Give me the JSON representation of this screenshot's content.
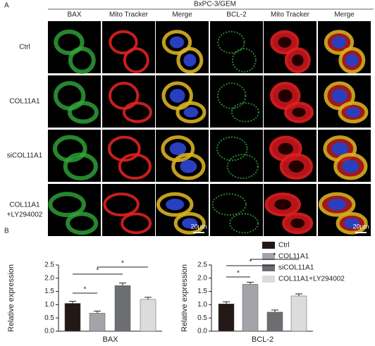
{
  "panel_a": {
    "label": "A",
    "title": "BxPC-3/GEM",
    "columns": [
      "BAX",
      "Mito Tracker",
      "Merge",
      "BCL-2",
      "Mito Tracker",
      "Merge"
    ],
    "rows": [
      [
        "Ctrl"
      ],
      [
        "COL11A1"
      ],
      [
        "siCOL11A1"
      ],
      [
        "COL11A1",
        "+LY294002"
      ]
    ],
    "scale_bars": [
      "20μm",
      "20μm"
    ]
  },
  "panel_b": {
    "label": "B",
    "legend": {
      "names": [
        "Ctrl",
        "COL11A1",
        "siCOL11A1",
        "COL11A1+LY294002"
      ],
      "colors": [
        "#231815",
        "#a3a3aa",
        "#6d6e71",
        "#dcdcdc"
      ]
    }
  },
  "chart_data": [
    {
      "type": "bar",
      "xlabel": "BAX",
      "ylabel": "Relative expression",
      "values": [
        1.05,
        0.68,
        1.72,
        1.2
      ],
      "errors": [
        0.08,
        0.08,
        0.1,
        0.08
      ],
      "ylim": [
        0,
        2.5
      ],
      "yticks": [
        {
          "value": 0,
          "label": "0.0"
        },
        {
          "value": 0.5,
          "label": "0.5"
        },
        {
          "value": 1,
          "label": "1.0"
        },
        {
          "value": 1.5,
          "label": "1.5"
        },
        {
          "value": 2,
          "label": "2.0"
        },
        {
          "value": 2.5,
          "label": "2.5"
        }
      ],
      "annotations": [
        "*",
        "*",
        "*"
      ]
    },
    {
      "type": "bar",
      "xlabel": "BCL-2",
      "ylabel": "Relative expression",
      "values": [
        1.03,
        1.77,
        0.72,
        1.33
      ],
      "errors": [
        0.08,
        0.08,
        0.08,
        0.08
      ],
      "ylim": [
        0,
        2.5
      ],
      "yticks": [
        {
          "value": 0,
          "label": "0.0"
        },
        {
          "value": 0.5,
          "label": "0.5"
        },
        {
          "value": 1,
          "label": "1.0"
        },
        {
          "value": 1.5,
          "label": "1.5"
        },
        {
          "value": 2,
          "label": "2.0"
        },
        {
          "value": 2.5,
          "label": "2.5"
        }
      ],
      "annotations": [
        "*",
        "*",
        "*"
      ]
    }
  ]
}
